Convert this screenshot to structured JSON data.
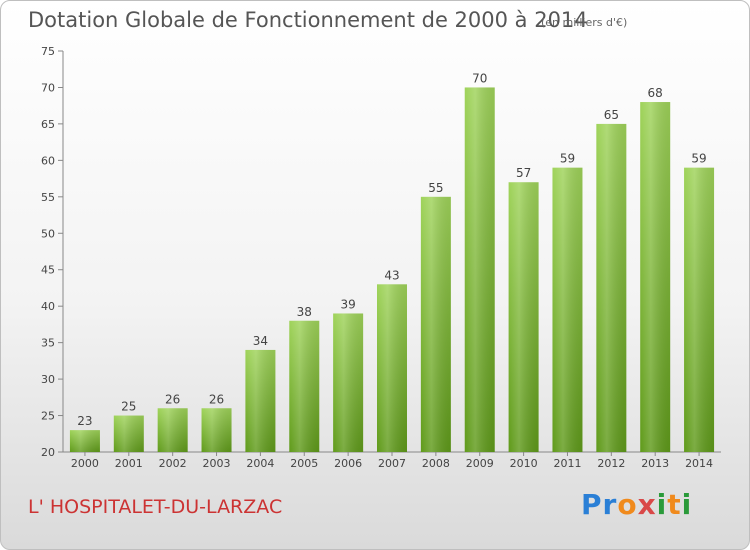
{
  "header": {
    "title": "Dotation Globale de Fonctionnement de 2000 à 2014",
    "unit_note": "(en milliers d'€)"
  },
  "footer": {
    "commune": "L' HOSPITALET-DU-LARZAC",
    "brand": [
      "P",
      "r",
      "o",
      "x",
      "i",
      "t",
      "i"
    ],
    "brand_colors": [
      "#2a7fd6",
      "#2a7fd6",
      "#f08a1c",
      "#d94848",
      "#2a9a3a",
      "#f08a1c",
      "#2a9a3a"
    ]
  },
  "colors": {
    "bar_top": "#9fd35a",
    "bar_bottom": "#5f9a1a",
    "axis": "#888888",
    "text": "#444444"
  },
  "chart_data": {
    "type": "bar",
    "title": "Dotation Globale de Fonctionnement de 2000 à 2014",
    "subtitle": "(en milliers d'€)",
    "xlabel": "",
    "ylabel": "",
    "categories": [
      "2000",
      "2001",
      "2002",
      "2003",
      "2004",
      "2005",
      "2006",
      "2007",
      "2008",
      "2009",
      "2010",
      "2011",
      "2012",
      "2013",
      "2014"
    ],
    "values": [
      23,
      25,
      26,
      26,
      34,
      38,
      39,
      43,
      55,
      70,
      57,
      59,
      65,
      68,
      59
    ],
    "ylim": [
      20,
      75
    ],
    "yticks": [
      20,
      25,
      30,
      35,
      40,
      45,
      50,
      55,
      60,
      65,
      70,
      75
    ],
    "grid": false,
    "legend": "none"
  }
}
